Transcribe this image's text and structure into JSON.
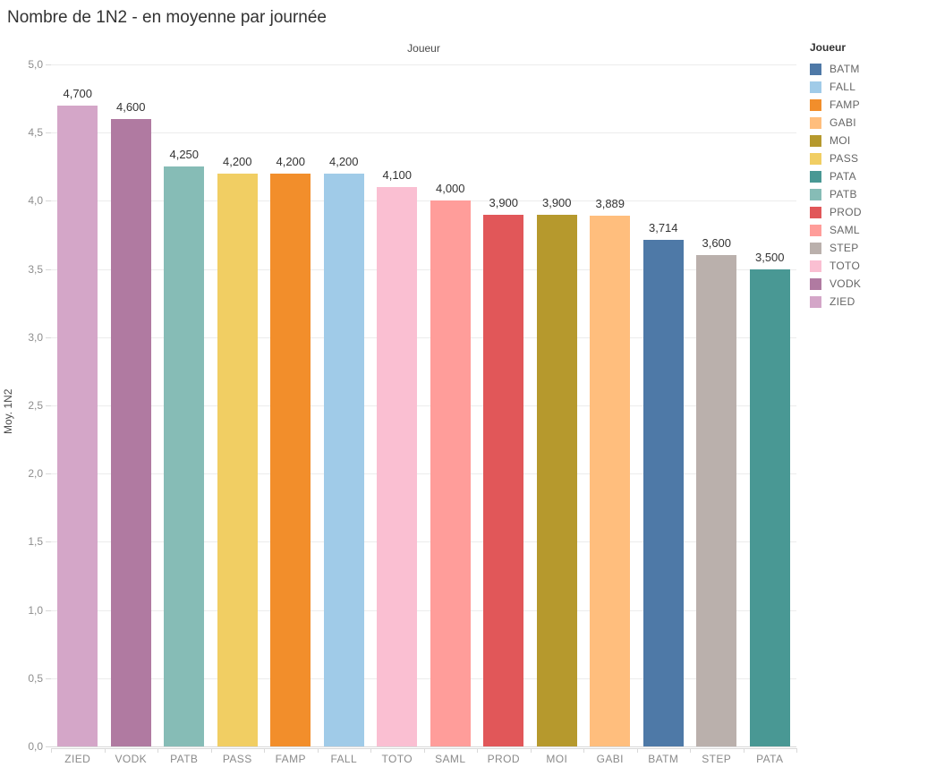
{
  "title": "Nombre de 1N2 - en moyenne par journée",
  "column_header": "Joueur",
  "y_axis": {
    "label": "Moy. 1N2",
    "ticks": [
      {
        "label": "0,0",
        "value": 0.0
      },
      {
        "label": "0,5",
        "value": 0.5
      },
      {
        "label": "1,0",
        "value": 1.0
      },
      {
        "label": "1,5",
        "value": 1.5
      },
      {
        "label": "2,0",
        "value": 2.0
      },
      {
        "label": "2,5",
        "value": 2.5
      },
      {
        "label": "3,0",
        "value": 3.0
      },
      {
        "label": "3,5",
        "value": 3.5
      },
      {
        "label": "4,0",
        "value": 4.0
      },
      {
        "label": "4,5",
        "value": 4.5
      },
      {
        "label": "5,0",
        "value": 5.0
      }
    ]
  },
  "legend": {
    "title": "Joueur",
    "items": [
      {
        "label": "BATM",
        "color": "#4E79A7"
      },
      {
        "label": "FALL",
        "color": "#A0CBE8"
      },
      {
        "label": "FAMP",
        "color": "#F28E2B"
      },
      {
        "label": "GABI",
        "color": "#FFBE7D"
      },
      {
        "label": "MOI",
        "color": "#B6992D"
      },
      {
        "label": "PASS",
        "color": "#F1CE63"
      },
      {
        "label": "PATA",
        "color": "#499894"
      },
      {
        "label": "PATB",
        "color": "#86BCB6"
      },
      {
        "label": "PROD",
        "color": "#E15759"
      },
      {
        "label": "SAML",
        "color": "#FF9D9A"
      },
      {
        "label": "STEP",
        "color": "#BAB0AC"
      },
      {
        "label": "TOTO",
        "color": "#FABFD2"
      },
      {
        "label": "VODK",
        "color": "#B07AA1"
      },
      {
        "label": "ZIED",
        "color": "#D4A6C8"
      }
    ]
  },
  "chart_data": {
    "type": "bar",
    "title": "Nombre de 1N2 - en moyenne par journée",
    "xlabel": "Joueur",
    "ylabel": "Moy. 1N2",
    "ylim": [
      0,
      5
    ],
    "grid": "horizontal, 0.5 steps",
    "legend_position": "right",
    "categories": [
      "ZIED",
      "VODK",
      "PATB",
      "PASS",
      "FAMP",
      "FALL",
      "TOTO",
      "SAML",
      "PROD",
      "MOI",
      "GABI",
      "BATM",
      "STEP",
      "PATA"
    ],
    "values": [
      4.7,
      4.6,
      4.25,
      4.2,
      4.2,
      4.2,
      4.1,
      4.0,
      3.9,
      3.9,
      3.889,
      3.714,
      3.6,
      3.5
    ],
    "value_labels": [
      "4,700",
      "4,600",
      "4,250",
      "4,200",
      "4,200",
      "4,200",
      "4,100",
      "4,000",
      "3,900",
      "3,900",
      "3,889",
      "3,714",
      "3,600",
      "3,500"
    ],
    "bar_colors": [
      "#D4A6C8",
      "#B07AA1",
      "#86BCB6",
      "#F1CE63",
      "#F28E2B",
      "#A0CBE8",
      "#FABFD2",
      "#FF9D9A",
      "#E15759",
      "#B6992D",
      "#FFBE7D",
      "#4E79A7",
      "#BAB0AC",
      "#499894"
    ]
  }
}
